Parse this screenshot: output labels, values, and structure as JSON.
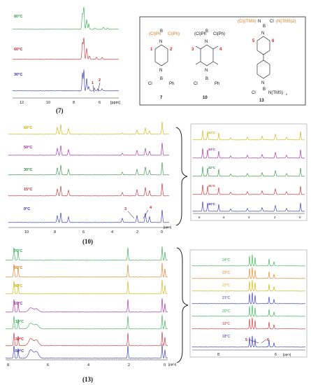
{
  "figure": {
    "panel_7": {
      "caption": "(7)",
      "axis_unit": "[ppm]",
      "ticks": [
        "12",
        "10",
        "8",
        "6"
      ],
      "temps": [
        {
          "label": "80°C",
          "color": "#2ea84a"
        },
        {
          "label": "60°C",
          "color": "#c0272d"
        },
        {
          "label": "30°C",
          "color": "#2b2bb0"
        }
      ],
      "peak_labels": [
        "1",
        "2"
      ]
    },
    "structures": {
      "compounds": [
        {
          "number": "7",
          "top_groups": [
            "(Cl)Ph",
            "B",
            "Cl(Ph)"
          ],
          "bottom_groups": [
            "Cl",
            "B",
            "Ph"
          ],
          "ring_labels": [
            "1",
            "2"
          ],
          "atom": "N"
        },
        {
          "number": "10",
          "top_groups": [
            "(Cl)Ph",
            "B",
            "Cl(Ph)"
          ],
          "bottom_groups": [
            "Cl",
            "B",
            "Ph"
          ],
          "ring_labels": [
            "3",
            "4"
          ],
          "atom": "N"
        },
        {
          "number": "13",
          "top_groups": [
            "(Cl)(TMS)",
            "N",
            "B",
            "Cl",
            "(N(TMS)2)"
          ],
          "bottom_groups": [
            "Cl",
            "B",
            "N(TMS)",
            "2"
          ],
          "ring_labels": [
            "5",
            "6"
          ],
          "atom": "N"
        }
      ]
    },
    "panel_10": {
      "caption": "(10)",
      "axis_unit": "[ppm]",
      "ticks": [
        "10",
        "8",
        "6",
        "4",
        "2",
        "0"
      ],
      "temps": [
        {
          "label": "60°C",
          "color": "#c9b000"
        },
        {
          "label": "50°C",
          "color": "#a0209a"
        },
        {
          "label": "30°C",
          "color": "#2e8a3c"
        },
        {
          "label": "15°C",
          "color": "#c0272d"
        },
        {
          "label": "0°C",
          "color": "#2b2bb0"
        }
      ],
      "peak_labels": [
        "3",
        "4"
      ],
      "inset": {
        "ticks": [
          "8",
          "6",
          "4",
          "2",
          "0"
        ],
        "temps": [
          {
            "label": "34°C",
            "color": "#c9b000"
          },
          {
            "label": "33°C",
            "color": "#a0209a"
          },
          {
            "label": "32°C",
            "color": "#2e8a3c"
          },
          {
            "label": "31°C",
            "color": "#c0272d"
          },
          {
            "label": "30°C",
            "color": "#2b2bb0"
          }
        ]
      }
    },
    "panel_13": {
      "caption": "(13)",
      "axis_unit": "[ppm]",
      "ticks": [
        "8",
        "6",
        "4",
        "2",
        "0"
      ],
      "temps": [
        {
          "label": "70°C",
          "color": "#2ea84a"
        },
        {
          "label": "50°C",
          "color": "#d97a1c"
        },
        {
          "label": "30°C",
          "color": "#c9b000"
        },
        {
          "label": "10°C",
          "color": "#a0209a"
        },
        {
          "label": "-10°C",
          "color": "#2ea84a"
        },
        {
          "label": "-30°C",
          "color": "#c0272d"
        },
        {
          "label": "-50°C",
          "color": "#2b2bb0"
        }
      ],
      "inset": {
        "ticks": [
          "8",
          "6"
        ],
        "axis_unit": "[ppm]",
        "temps": [
          {
            "label": "24°C",
            "color": "#2ea84a"
          },
          {
            "label": "23°C",
            "color": "#d97a1c"
          },
          {
            "label": "22°C",
            "color": "#c9b000"
          },
          {
            "label": "21°C",
            "color": "#2b2bb0"
          },
          {
            "label": "20°C",
            "color": "#2ea84a"
          },
          {
            "label": "19°C",
            "color": "#c0272d"
          },
          {
            "label": "18°C",
            "color": "#2b2bb0"
          }
        ],
        "peak_labels": [
          "5",
          "6"
        ]
      }
    }
  }
}
